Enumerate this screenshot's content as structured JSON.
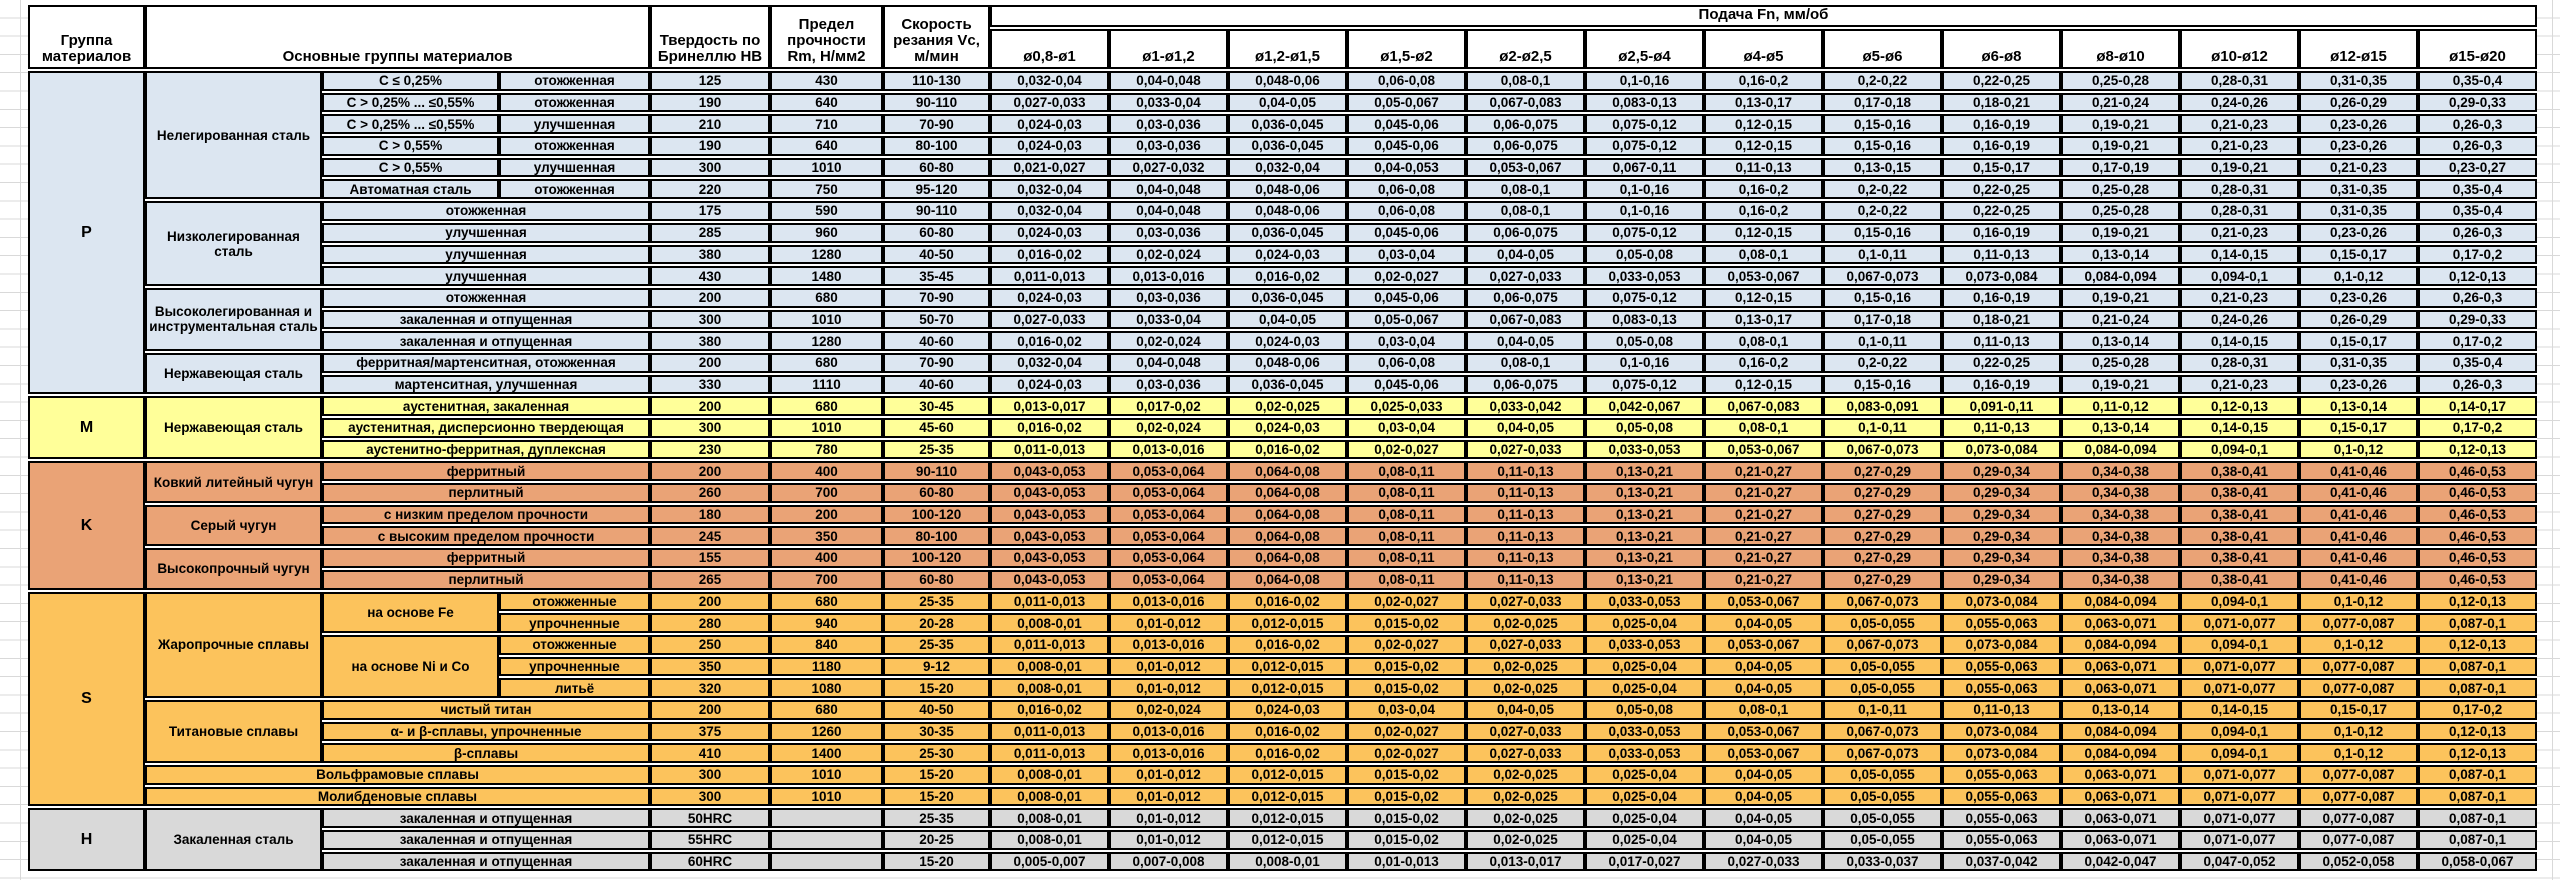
{
  "header": {
    "group_col": "Группа материалов",
    "main_groups_col": "Основные группы материалов",
    "hardness_col": "Твердость по Бринеллю HB",
    "strength_col": "Предел прочности Rm, Н/мм2",
    "speed_col": "Скорость резания Vc, м/мин",
    "feed_col": "Подача Fn, мм/об",
    "diameters": [
      "ø0,8-ø1",
      "ø1-ø1,2",
      "ø1,2-ø1,5",
      "ø1,5-ø2",
      "ø2-ø2,5",
      "ø2,5-ø4",
      "ø4-ø5",
      "ø5-ø6",
      "ø6-ø8",
      "ø8-ø10",
      "ø10-ø12",
      "ø12-ø15",
      "ø15-ø20"
    ]
  },
  "colors": {
    "group_P": "#dce6f1",
    "group_M": "#ffff99",
    "group_K": "#eaa376",
    "group_S": "#fcc35c",
    "group_H": "#d9d9d9",
    "border": "#000000",
    "gridline": "#d9d9d9"
  },
  "feed_patterns": {
    "A": [
      "0,032-0,04",
      "0,04-0,048",
      "0,048-0,06",
      "0,06-0,08",
      "0,08-0,1",
      "0,1-0,16",
      "0,16-0,2",
      "0,2-0,22",
      "0,22-0,25",
      "0,25-0,28",
      "0,28-0,31",
      "0,31-0,35",
      "0,35-0,4"
    ],
    "B": [
      "0,027-0,033",
      "0,033-0,04",
      "0,04-0,05",
      "0,05-0,067",
      "0,067-0,083",
      "0,083-0,13",
      "0,13-0,17",
      "0,17-0,18",
      "0,18-0,21",
      "0,21-0,24",
      "0,24-0,26",
      "0,26-0,29",
      "0,29-0,33"
    ],
    "C": [
      "0,024-0,03",
      "0,03-0,036",
      "0,036-0,045",
      "0,045-0,06",
      "0,06-0,075",
      "0,075-0,12",
      "0,12-0,15",
      "0,15-0,16",
      "0,16-0,19",
      "0,19-0,21",
      "0,21-0,23",
      "0,23-0,26",
      "0,26-0,3"
    ],
    "D": [
      "0,021-0,027",
      "0,027-0,032",
      "0,032-0,04",
      "0,04-0,053",
      "0,053-0,067",
      "0,067-0,11",
      "0,11-0,13",
      "0,13-0,15",
      "0,15-0,17",
      "0,17-0,19",
      "0,19-0,21",
      "0,21-0,23",
      "0,23-0,27"
    ],
    "E": [
      "0,016-0,02",
      "0,02-0,024",
      "0,024-0,03",
      "0,03-0,04",
      "0,04-0,05",
      "0,05-0,08",
      "0,08-0,1",
      "0,1-0,11",
      "0,11-0,13",
      "0,13-0,14",
      "0,14-0,15",
      "0,15-0,17",
      "0,17-0,2"
    ],
    "F": [
      "0,011-0,013",
      "0,013-0,016",
      "0,016-0,02",
      "0,02-0,027",
      "0,027-0,033",
      "0,033-0,053",
      "0,053-0,067",
      "0,067-0,073",
      "0,073-0,084",
      "0,084-0,094",
      "0,094-0,1",
      "0,1-0,12",
      "0,12-0,13"
    ],
    "G": [
      "0,013-0,017",
      "0,017-0,02",
      "0,02-0,025",
      "0,025-0,033",
      "0,033-0,042",
      "0,042-0,067",
      "0,067-0,083",
      "0,083-0,091",
      "0,091-0,11",
      "0,11-0,12",
      "0,12-0,13",
      "0,13-0,14",
      "0,14-0,17"
    ],
    "H": [
      "0,043-0,053",
      "0,053-0,064",
      "0,064-0,08",
      "0,08-0,11",
      "0,11-0,13",
      "0,13-0,21",
      "0,21-0,27",
      "0,27-0,29",
      "0,29-0,34",
      "0,34-0,38",
      "0,38-0,41",
      "0,41-0,46",
      "0,46-0,53"
    ],
    "I": [
      "0,008-0,01",
      "0,01-0,012",
      "0,012-0,015",
      "0,015-0,02",
      "0,02-0,025",
      "0,025-0,04",
      "0,04-0,05",
      "0,05-0,055",
      "0,055-0,063",
      "0,063-0,071",
      "0,071-0,077",
      "0,077-0,087",
      "0,087-0,1"
    ],
    "J": [
      "0,005-0,007",
      "0,007-0,008",
      "0,008-0,01",
      "0,01-0,013",
      "0,013-0,017",
      "0,017-0,027",
      "0,027-0,033",
      "0,033-0,037",
      "0,037-0,042",
      "0,042-0,047",
      "0,047-0,052",
      "0,052-0,058",
      "0,058-0,067"
    ]
  },
  "rows": [
    {
      "g": "P",
      "feed": "A",
      "cells": [
        {
          "t": "P",
          "rs": 15,
          "n": "group-letter"
        },
        {
          "t": "Нелегированная сталь",
          "rs": 6,
          "n": "material-group"
        },
        {
          "t": "C ≤ 0,25%",
          "n": "material-spec"
        },
        {
          "t": "отожженная",
          "n": "condition"
        },
        {
          "t": "125",
          "n": "hb-cell"
        },
        {
          "t": "430",
          "n": "rm-cell"
        },
        {
          "t": "110-130",
          "n": "vc-cell"
        }
      ]
    },
    {
      "g": "P",
      "feed": "B",
      "cells": [
        {
          "t": "C > 0,25% ... ≤0,55%",
          "n": "material-spec"
        },
        {
          "t": "отожженная",
          "n": "condition"
        },
        {
          "t": "190",
          "n": "hb-cell"
        },
        {
          "t": "640",
          "n": "rm-cell"
        },
        {
          "t": "90-110",
          "n": "vc-cell"
        }
      ]
    },
    {
      "g": "P",
      "feed": "C",
      "cells": [
        {
          "t": "C > 0,25% ... ≤0,55%",
          "n": "material-spec"
        },
        {
          "t": "улучшенная",
          "n": "condition"
        },
        {
          "t": "210",
          "n": "hb-cell"
        },
        {
          "t": "710",
          "n": "rm-cell"
        },
        {
          "t": "70-90",
          "n": "vc-cell"
        }
      ]
    },
    {
      "g": "P",
      "feed": "C",
      "cells": [
        {
          "t": "C > 0,55%",
          "n": "material-spec"
        },
        {
          "t": "отожженная",
          "n": "condition"
        },
        {
          "t": "190",
          "n": "hb-cell"
        },
        {
          "t": "640",
          "n": "rm-cell"
        },
        {
          "t": "80-100",
          "n": "vc-cell"
        }
      ]
    },
    {
      "g": "P",
      "feed": "D",
      "cells": [
        {
          "t": "C > 0,55%",
          "n": "material-spec"
        },
        {
          "t": "улучшенная",
          "n": "condition"
        },
        {
          "t": "300",
          "n": "hb-cell"
        },
        {
          "t": "1010",
          "n": "rm-cell"
        },
        {
          "t": "60-80",
          "n": "vc-cell"
        }
      ]
    },
    {
      "g": "P",
      "feed": "A",
      "cells": [
        {
          "t": "Автоматная сталь",
          "n": "material-spec"
        },
        {
          "t": "отожженная",
          "n": "condition"
        },
        {
          "t": "220",
          "n": "hb-cell"
        },
        {
          "t": "750",
          "n": "rm-cell"
        },
        {
          "t": "95-120",
          "n": "vc-cell"
        }
      ]
    },
    {
      "g": "P",
      "feed": "A",
      "cells": [
        {
          "t": "Низколегированная сталь",
          "rs": 4,
          "n": "material-group"
        },
        {
          "t": "отожженная",
          "cs": 2,
          "n": "condition"
        },
        {
          "t": "175",
          "n": "hb-cell"
        },
        {
          "t": "590",
          "n": "rm-cell"
        },
        {
          "t": "90-110",
          "n": "vc-cell"
        }
      ]
    },
    {
      "g": "P",
      "feed": "C",
      "cells": [
        {
          "t": "улучшенная",
          "cs": 2,
          "n": "condition"
        },
        {
          "t": "285",
          "n": "hb-cell"
        },
        {
          "t": "960",
          "n": "rm-cell"
        },
        {
          "t": "60-80",
          "n": "vc-cell"
        }
      ]
    },
    {
      "g": "P",
      "feed": "E",
      "cells": [
        {
          "t": "улучшенная",
          "cs": 2,
          "n": "condition"
        },
        {
          "t": "380",
          "n": "hb-cell"
        },
        {
          "t": "1280",
          "n": "rm-cell"
        },
        {
          "t": "40-50",
          "n": "vc-cell"
        }
      ]
    },
    {
      "g": "P",
      "feed": "F",
      "cells": [
        {
          "t": "улучшенная",
          "cs": 2,
          "n": "condition"
        },
        {
          "t": "430",
          "n": "hb-cell"
        },
        {
          "t": "1480",
          "n": "rm-cell"
        },
        {
          "t": "35-45",
          "n": "vc-cell"
        }
      ]
    },
    {
      "g": "P",
      "feed": "C",
      "cells": [
        {
          "t": "Высоколегированная и инструментальная сталь",
          "rs": 3,
          "n": "material-group"
        },
        {
          "t": "отожженная",
          "cs": 2,
          "n": "condition"
        },
        {
          "t": "200",
          "n": "hb-cell"
        },
        {
          "t": "680",
          "n": "rm-cell"
        },
        {
          "t": "70-90",
          "n": "vc-cell"
        }
      ]
    },
    {
      "g": "P",
      "feed": "B",
      "cells": [
        {
          "t": "закаленная и отпущенная",
          "cs": 2,
          "n": "condition"
        },
        {
          "t": "300",
          "n": "hb-cell"
        },
        {
          "t": "1010",
          "n": "rm-cell"
        },
        {
          "t": "50-70",
          "n": "vc-cell"
        }
      ]
    },
    {
      "g": "P",
      "feed": "E",
      "cells": [
        {
          "t": "закаленная и отпущенная",
          "cs": 2,
          "n": "condition"
        },
        {
          "t": "380",
          "n": "hb-cell"
        },
        {
          "t": "1280",
          "n": "rm-cell"
        },
        {
          "t": "40-60",
          "n": "vc-cell"
        }
      ]
    },
    {
      "g": "P",
      "feed": "A",
      "cells": [
        {
          "t": "Нержавеющая сталь",
          "rs": 2,
          "n": "material-group"
        },
        {
          "t": "ферритная/мартенситная, отожженная",
          "cs": 2,
          "n": "condition"
        },
        {
          "t": "200",
          "n": "hb-cell"
        },
        {
          "t": "680",
          "n": "rm-cell"
        },
        {
          "t": "70-90",
          "n": "vc-cell"
        }
      ]
    },
    {
      "g": "P",
      "feed": "C",
      "cells": [
        {
          "t": "мартенситная, улучшенная",
          "cs": 2,
          "n": "condition"
        },
        {
          "t": "330",
          "n": "hb-cell"
        },
        {
          "t": "1110",
          "n": "rm-cell"
        },
        {
          "t": "40-60",
          "n": "vc-cell"
        }
      ]
    },
    {
      "g": "M",
      "feed": "G",
      "cells": [
        {
          "t": "M",
          "rs": 3,
          "n": "group-letter"
        },
        {
          "t": "Нержавеющая сталь",
          "rs": 3,
          "n": "material-group"
        },
        {
          "t": "аустенитная, закаленная",
          "cs": 2,
          "n": "condition"
        },
        {
          "t": "200",
          "n": "hb-cell"
        },
        {
          "t": "680",
          "n": "rm-cell"
        },
        {
          "t": "30-45",
          "n": "vc-cell"
        }
      ]
    },
    {
      "g": "M",
      "feed": "E",
      "cells": [
        {
          "t": "аустенитная, дисперсионно твердеющая",
          "cs": 2,
          "n": "condition"
        },
        {
          "t": "300",
          "n": "hb-cell"
        },
        {
          "t": "1010",
          "n": "rm-cell"
        },
        {
          "t": "45-60",
          "n": "vc-cell"
        }
      ]
    },
    {
      "g": "M",
      "feed": "F",
      "cells": [
        {
          "t": "аустенитно-ферритная, дуплексная",
          "cs": 2,
          "n": "condition"
        },
        {
          "t": "230",
          "n": "hb-cell"
        },
        {
          "t": "780",
          "n": "rm-cell"
        },
        {
          "t": "25-35",
          "n": "vc-cell"
        }
      ]
    },
    {
      "g": "K",
      "feed": "H",
      "cells": [
        {
          "t": "K",
          "rs": 6,
          "n": "group-letter"
        },
        {
          "t": "Ковкий литейный чугун",
          "rs": 2,
          "n": "material-group"
        },
        {
          "t": "ферритный",
          "cs": 2,
          "n": "condition"
        },
        {
          "t": "200",
          "n": "hb-cell"
        },
        {
          "t": "400",
          "n": "rm-cell"
        },
        {
          "t": "90-110",
          "n": "vc-cell"
        }
      ]
    },
    {
      "g": "K",
      "feed": "H",
      "cells": [
        {
          "t": "перлитный",
          "cs": 2,
          "n": "condition"
        },
        {
          "t": "260",
          "n": "hb-cell"
        },
        {
          "t": "700",
          "n": "rm-cell"
        },
        {
          "t": "60-80",
          "n": "vc-cell"
        }
      ]
    },
    {
      "g": "K",
      "feed": "H",
      "cells": [
        {
          "t": "Серый чугун",
          "rs": 2,
          "n": "material-group"
        },
        {
          "t": "с низким пределом прочности",
          "cs": 2,
          "n": "condition"
        },
        {
          "t": "180",
          "n": "hb-cell"
        },
        {
          "t": "200",
          "n": "rm-cell"
        },
        {
          "t": "100-120",
          "n": "vc-cell"
        }
      ]
    },
    {
      "g": "K",
      "feed": "H",
      "cells": [
        {
          "t": "с высоким пределом прочности",
          "cs": 2,
          "n": "condition"
        },
        {
          "t": "245",
          "n": "hb-cell"
        },
        {
          "t": "350",
          "n": "rm-cell"
        },
        {
          "t": "80-100",
          "n": "vc-cell"
        }
      ]
    },
    {
      "g": "K",
      "feed": "H",
      "cells": [
        {
          "t": "Высокопрочный чугун",
          "rs": 2,
          "n": "material-group"
        },
        {
          "t": "ферритный",
          "cs": 2,
          "n": "condition"
        },
        {
          "t": "155",
          "n": "hb-cell"
        },
        {
          "t": "400",
          "n": "rm-cell"
        },
        {
          "t": "100-120",
          "n": "vc-cell"
        }
      ]
    },
    {
      "g": "K",
      "feed": "H",
      "cells": [
        {
          "t": "перлитный",
          "cs": 2,
          "n": "condition"
        },
        {
          "t": "265",
          "n": "hb-cell"
        },
        {
          "t": "700",
          "n": "rm-cell"
        },
        {
          "t": "60-80",
          "n": "vc-cell"
        }
      ]
    },
    {
      "g": "S",
      "feed": "F",
      "cells": [
        {
          "t": "S",
          "rs": 10,
          "n": "group-letter"
        },
        {
          "t": "Жаропрочные сплавы",
          "rs": 5,
          "n": "material-group"
        },
        {
          "t": "на основе Fe",
          "rs": 2,
          "n": "material-spec"
        },
        {
          "t": "отожженные",
          "n": "condition"
        },
        {
          "t": "200",
          "n": "hb-cell"
        },
        {
          "t": "680",
          "n": "rm-cell"
        },
        {
          "t": "25-35",
          "n": "vc-cell"
        }
      ]
    },
    {
      "g": "S",
      "feed": "I",
      "cells": [
        {
          "t": "упрочненные",
          "n": "condition"
        },
        {
          "t": "280",
          "n": "hb-cell"
        },
        {
          "t": "940",
          "n": "rm-cell"
        },
        {
          "t": "20-28",
          "n": "vc-cell"
        }
      ]
    },
    {
      "g": "S",
      "feed": "F",
      "cells": [
        {
          "t": "на основе Ni и Co",
          "rs": 3,
          "n": "material-spec"
        },
        {
          "t": "отожженные",
          "n": "condition"
        },
        {
          "t": "250",
          "n": "hb-cell"
        },
        {
          "t": "840",
          "n": "rm-cell"
        },
        {
          "t": "25-35",
          "n": "vc-cell"
        }
      ]
    },
    {
      "g": "S",
      "feed": "I",
      "cells": [
        {
          "t": "упрочненные",
          "n": "condition"
        },
        {
          "t": "350",
          "n": "hb-cell"
        },
        {
          "t": "1180",
          "n": "rm-cell"
        },
        {
          "t": "9-12",
          "n": "vc-cell"
        }
      ]
    },
    {
      "g": "S",
      "feed": "I",
      "cells": [
        {
          "t": "литьё",
          "n": "condition"
        },
        {
          "t": "320",
          "n": "hb-cell"
        },
        {
          "t": "1080",
          "n": "rm-cell"
        },
        {
          "t": "15-20",
          "n": "vc-cell"
        }
      ]
    },
    {
      "g": "S",
      "feed": "E",
      "cells": [
        {
          "t": "Титановые сплавы",
          "rs": 3,
          "n": "material-group"
        },
        {
          "t": "чистый титан",
          "cs": 2,
          "n": "condition"
        },
        {
          "t": "200",
          "n": "hb-cell"
        },
        {
          "t": "680",
          "n": "rm-cell"
        },
        {
          "t": "40-50",
          "n": "vc-cell"
        }
      ]
    },
    {
      "g": "S",
      "feed": "F",
      "cells": [
        {
          "t": "α- и β-сплавы, упрочненные",
          "cs": 2,
          "n": "condition"
        },
        {
          "t": "375",
          "n": "hb-cell"
        },
        {
          "t": "1260",
          "n": "rm-cell"
        },
        {
          "t": "30-35",
          "n": "vc-cell"
        }
      ]
    },
    {
      "g": "S",
      "feed": "F",
      "cells": [
        {
          "t": "β-сплавы",
          "cs": 2,
          "n": "condition"
        },
        {
          "t": "410",
          "n": "hb-cell"
        },
        {
          "t": "1400",
          "n": "rm-cell"
        },
        {
          "t": "25-30",
          "n": "vc-cell"
        }
      ]
    },
    {
      "g": "S",
      "feed": "I",
      "cells": [
        {
          "t": "Вольфрамовые сплавы",
          "cs": 3,
          "n": "material-group"
        },
        {
          "t": "300",
          "n": "hb-cell"
        },
        {
          "t": "1010",
          "n": "rm-cell"
        },
        {
          "t": "15-20",
          "n": "vc-cell"
        }
      ]
    },
    {
      "g": "S",
      "feed": "I",
      "cells": [
        {
          "t": "Молибденовые сплавы",
          "cs": 3,
          "n": "material-group"
        },
        {
          "t": "300",
          "n": "hb-cell"
        },
        {
          "t": "1010",
          "n": "rm-cell"
        },
        {
          "t": "15-20",
          "n": "vc-cell"
        }
      ]
    },
    {
      "g": "H",
      "feed": "I",
      "cells": [
        {
          "t": "H",
          "rs": 3,
          "n": "group-letter"
        },
        {
          "t": "Закаленная сталь",
          "rs": 3,
          "n": "material-group"
        },
        {
          "t": "закаленная и отпущенная",
          "cs": 2,
          "n": "condition"
        },
        {
          "t": "50HRC",
          "n": "hb-cell"
        },
        {
          "t": "",
          "n": "rm-cell"
        },
        {
          "t": "25-35",
          "n": "vc-cell"
        }
      ]
    },
    {
      "g": "H",
      "feed": "I",
      "cells": [
        {
          "t": "закаленная и отпущенная",
          "cs": 2,
          "n": "condition"
        },
        {
          "t": "55HRC",
          "n": "hb-cell"
        },
        {
          "t": "",
          "n": "rm-cell"
        },
        {
          "t": "20-25",
          "n": "vc-cell"
        }
      ]
    },
    {
      "g": "H",
      "feed": "J",
      "cells": [
        {
          "t": "закаленная и отпущенная",
          "cs": 2,
          "n": "condition"
        },
        {
          "t": "60HRC",
          "n": "hb-cell"
        },
        {
          "t": "",
          "n": "rm-cell"
        },
        {
          "t": "15-20",
          "n": "vc-cell"
        }
      ]
    }
  ]
}
